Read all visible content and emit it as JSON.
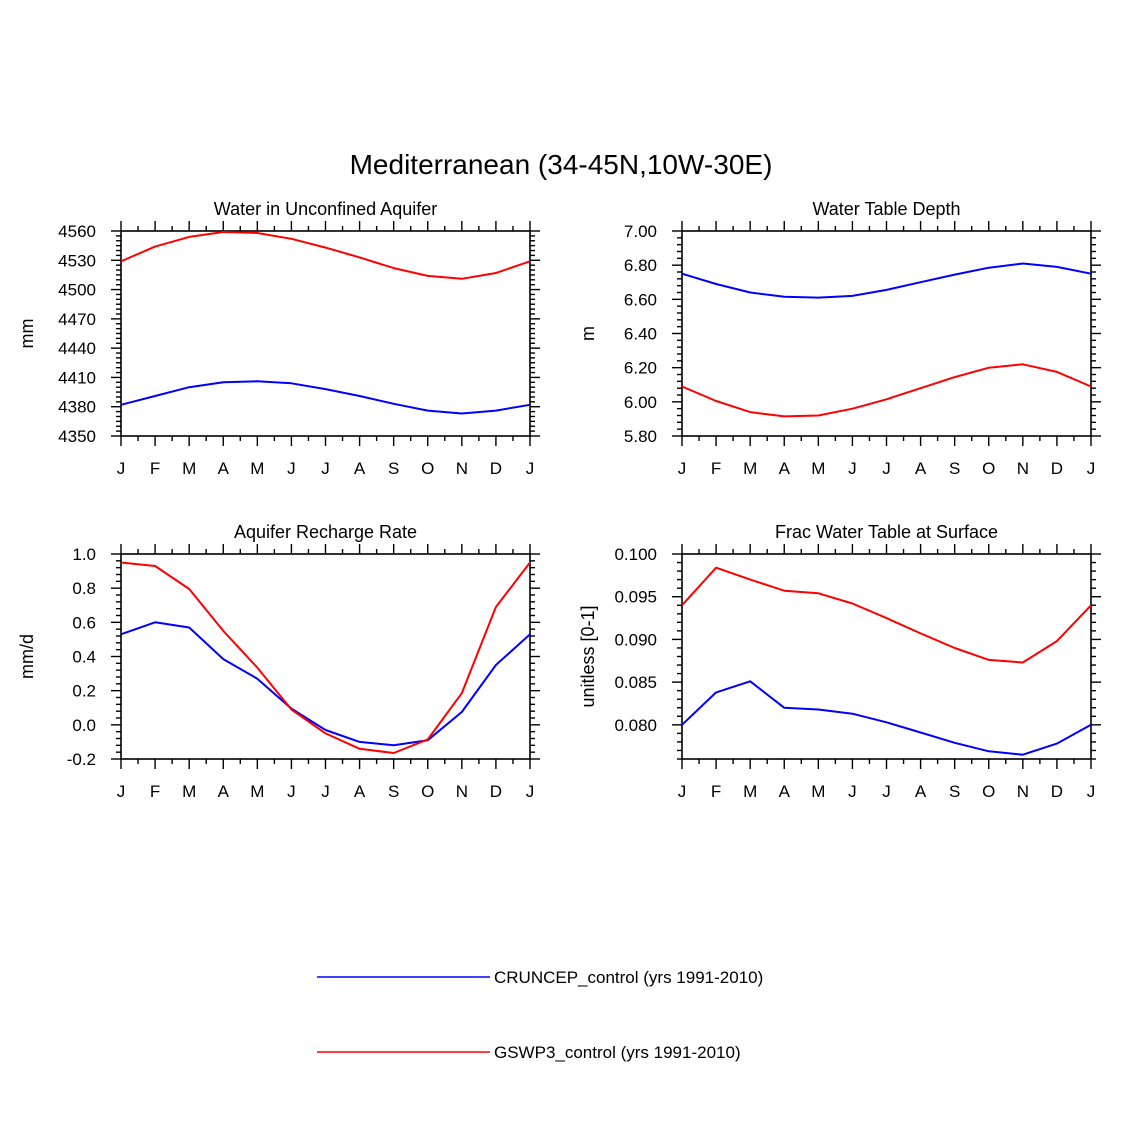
{
  "figure_title": "Mediterranean (34-45N,10W-30E)",
  "colors": {
    "CRUNCEP": "#0000ff",
    "GSWP3": "#ff0000"
  },
  "legend": [
    {
      "label": "CRUNCEP_control (yrs 1991-2010)",
      "color": "#0000ff"
    },
    {
      "label": "GSWP3_control (yrs 1991-2010)",
      "color": "#ff0000"
    }
  ],
  "chart_data": [
    {
      "type": "line",
      "title": "Water in Unconfined Aquifer",
      "ylabel": "mm",
      "xlabel": "",
      "categories": [
        "J",
        "F",
        "M",
        "A",
        "M",
        "J",
        "J",
        "A",
        "S",
        "O",
        "N",
        "D",
        "J"
      ],
      "ylim": [
        4350,
        4560
      ],
      "yticks": [
        4350,
        4380,
        4410,
        4440,
        4470,
        4500,
        4530,
        4560
      ],
      "ytick_labels": [
        "4350",
        "4380",
        "4410",
        "4440",
        "4470",
        "4500",
        "4530",
        "4560"
      ],
      "yminor": 6,
      "series": [
        {
          "name": "CRUNCEP_control (yrs 1991-2010)",
          "color": "#0000ff",
          "values": [
            4382,
            4391,
            4400,
            4405,
            4406,
            4404,
            4398,
            4391,
            4383,
            4376,
            4373,
            4376,
            4382
          ]
        },
        {
          "name": "GSWP3_control (yrs 1991-2010)",
          "color": "#ff0000",
          "values": [
            4529,
            4544,
            4554,
            4559,
            4558,
            4552,
            4543,
            4533,
            4522,
            4514,
            4511,
            4517,
            4529
          ]
        }
      ]
    },
    {
      "type": "line",
      "title": "Water Table Depth",
      "ylabel": "m",
      "xlabel": "",
      "categories": [
        "J",
        "F",
        "M",
        "A",
        "M",
        "J",
        "J",
        "A",
        "S",
        "O",
        "N",
        "D",
        "J"
      ],
      "ylim": [
        5.8,
        7.0
      ],
      "yticks": [
        5.8,
        6.0,
        6.2,
        6.4,
        6.6,
        6.8,
        7.0
      ],
      "ytick_labels": [
        "5.80",
        "6.00",
        "6.20",
        "6.40",
        "6.60",
        "6.80",
        "7.00"
      ],
      "yminor": 5,
      "series": [
        {
          "name": "CRUNCEP_control (yrs 1991-2010)",
          "color": "#0000ff",
          "values": [
            6.75,
            6.69,
            6.64,
            6.615,
            6.61,
            6.62,
            6.655,
            6.7,
            6.745,
            6.785,
            6.81,
            6.79,
            6.75
          ]
        },
        {
          "name": "GSWP3_control (yrs 1991-2010)",
          "color": "#ff0000",
          "values": [
            6.09,
            6.005,
            5.94,
            5.915,
            5.92,
            5.96,
            6.015,
            6.08,
            6.145,
            6.2,
            6.22,
            6.175,
            6.09
          ]
        }
      ]
    },
    {
      "type": "line",
      "title": "Aquifer Recharge Rate",
      "ylabel": "mm/d",
      "xlabel": "",
      "categories": [
        "J",
        "F",
        "M",
        "A",
        "M",
        "J",
        "J",
        "A",
        "S",
        "O",
        "N",
        "D",
        "J"
      ],
      "ylim": [
        -0.2,
        1.0
      ],
      "yticks": [
        -0.2,
        0.0,
        0.2,
        0.4,
        0.6,
        0.8,
        1.0
      ],
      "ytick_labels": [
        "-0.2",
        "0.0",
        "0.2",
        "0.4",
        "0.6",
        "0.8",
        "1.0"
      ],
      "yminor": 5,
      "series": [
        {
          "name": "CRUNCEP_control (yrs 1991-2010)",
          "color": "#0000ff",
          "values": [
            0.53,
            0.6,
            0.57,
            0.385,
            0.27,
            0.095,
            -0.03,
            -0.1,
            -0.12,
            -0.09,
            0.075,
            0.35,
            0.53
          ]
        },
        {
          "name": "GSWP3_control (yrs 1991-2010)",
          "color": "#ff0000",
          "values": [
            0.95,
            0.93,
            0.795,
            0.55,
            0.335,
            0.09,
            -0.05,
            -0.14,
            -0.165,
            -0.085,
            0.185,
            0.69,
            0.95
          ]
        }
      ]
    },
    {
      "type": "line",
      "title": "Frac Water Table at Surface",
      "ylabel": "unitless [0-1]",
      "xlabel": "",
      "categories": [
        "J",
        "F",
        "M",
        "A",
        "M",
        "J",
        "J",
        "A",
        "S",
        "O",
        "N",
        "D",
        "J"
      ],
      "ylim": [
        0.076,
        0.1
      ],
      "yticks": [
        0.08,
        0.085,
        0.09,
        0.095,
        0.1
      ],
      "ytick_labels": [
        "0.080",
        "0.085",
        "0.090",
        "0.095",
        "0.100"
      ],
      "yminor": 5,
      "series": [
        {
          "name": "CRUNCEP_control (yrs 1991-2010)",
          "color": "#0000ff",
          "values": [
            0.08,
            0.0838,
            0.0851,
            0.082,
            0.0818,
            0.0813,
            0.0803,
            0.0791,
            0.0779,
            0.0769,
            0.0765,
            0.0778,
            0.08
          ]
        },
        {
          "name": "GSWP3_control (yrs 1991-2010)",
          "color": "#ff0000",
          "values": [
            0.094,
            0.0984,
            0.097,
            0.0957,
            0.0954,
            0.0942,
            0.0925,
            0.0907,
            0.089,
            0.0876,
            0.0873,
            0.0898,
            0.094
          ]
        }
      ]
    }
  ]
}
